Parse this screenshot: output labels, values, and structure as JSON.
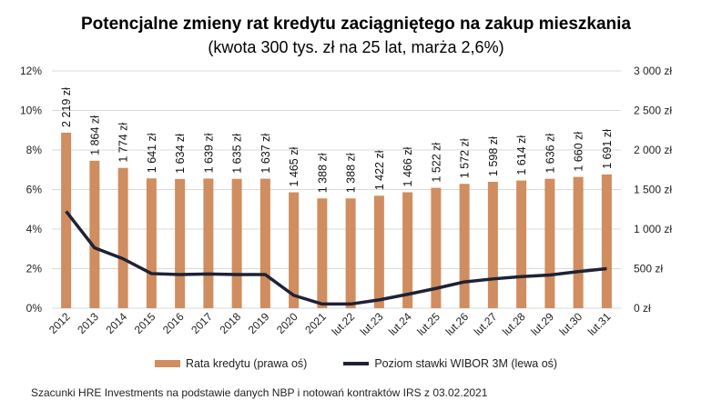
{
  "chart_data": {
    "type": "bar+line",
    "title": "Potencjalne zmieny rat kredytu zaciągniętego na zakup mieszkania",
    "subtitle": "(kwota 300 tys. zł na 25 lat, marża 2,6%)",
    "categories": [
      "2012",
      "2013",
      "2014",
      "2015",
      "2016",
      "2017",
      "2018",
      "2019",
      "2020",
      "2021",
      "lut.22",
      "lut.23",
      "lut.24",
      "lut.25",
      "lut.26",
      "lut.27",
      "lut.28",
      "lut.29",
      "lut.30",
      "lut.31"
    ],
    "series": [
      {
        "name": "Rata kredytu (prawa oś)",
        "type": "bar",
        "axis": "right",
        "color": "#D08D5F",
        "values": [
          2219,
          1864,
          1774,
          1641,
          1634,
          1639,
          1635,
          1637,
          1465,
          1388,
          1388,
          1422,
          1466,
          1522,
          1572,
          1598,
          1614,
          1636,
          1660,
          1691
        ],
        "labels": [
          "2 219 zł",
          "1 864 zł",
          "1 774 zł",
          "1 641 zł",
          "1 634 zł",
          "1 639 zł",
          "1 635 zł",
          "1 637 zł",
          "1 465 zł",
          "1 388 zł",
          "1 388 zł",
          "1 422 zł",
          "1 466 zł",
          "1 522 zł",
          "1 572 zł",
          "1 598 zł",
          "1 614 zł",
          "1 636 zł",
          "1 660 zł",
          "1 691 zł"
        ]
      },
      {
        "name": "Poziom stawki WIBOR 3M (lewa oś)",
        "type": "line",
        "axis": "left",
        "color": "#1E2235",
        "values": [
          4.9,
          3.05,
          2.5,
          1.75,
          1.7,
          1.73,
          1.7,
          1.7,
          0.65,
          0.21,
          0.21,
          0.42,
          0.7,
          1.0,
          1.33,
          1.48,
          1.6,
          1.68,
          1.85,
          2.0
        ]
      }
    ],
    "left_axis": {
      "range": [
        0,
        12
      ],
      "ticks": [
        "0%",
        "2%",
        "4%",
        "6%",
        "8%",
        "10%",
        "12%"
      ]
    },
    "right_axis": {
      "range": [
        0,
        3000
      ],
      "ticks": [
        "0 zł",
        "500 zł",
        "1 000 zł",
        "1 500 zł",
        "2 000 zł",
        "2 500 zł",
        "3 000 zł"
      ]
    },
    "grid": true,
    "legend": "bottom"
  },
  "footnote": "Szacunki HRE Investments na podstawie danych NBP i notowań kontraktów IRS z 03.02.2021"
}
